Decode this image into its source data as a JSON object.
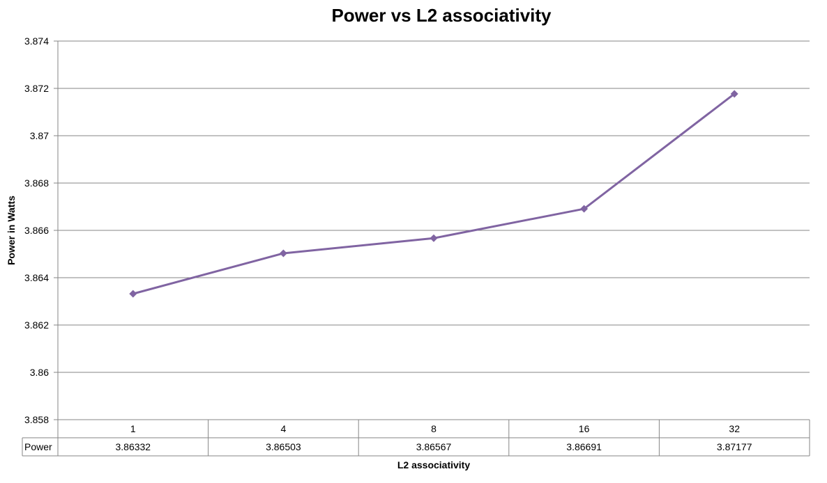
{
  "chart_data": {
    "type": "line",
    "title": "Power vs L2 associativity",
    "xlabel": "L2 associativity",
    "ylabel": "Power in Watts",
    "categories": [
      "1",
      "4",
      "8",
      "16",
      "32"
    ],
    "series": [
      {
        "name": "Power",
        "values": [
          3.86332,
          3.86503,
          3.86567,
          3.86691,
          3.87177
        ],
        "color": "#8064a2"
      }
    ],
    "value_labels": [
      "3.86332",
      "3.86503",
      "3.86567",
      "3.86691",
      "3.87177"
    ],
    "ylim": [
      3.858,
      3.874
    ],
    "yticks": [
      "3.858",
      "3.86",
      "3.862",
      "3.864",
      "3.866",
      "3.868",
      "3.87",
      "3.872",
      "3.874"
    ],
    "grid": true,
    "data_table": true,
    "marker": "diamond"
  }
}
